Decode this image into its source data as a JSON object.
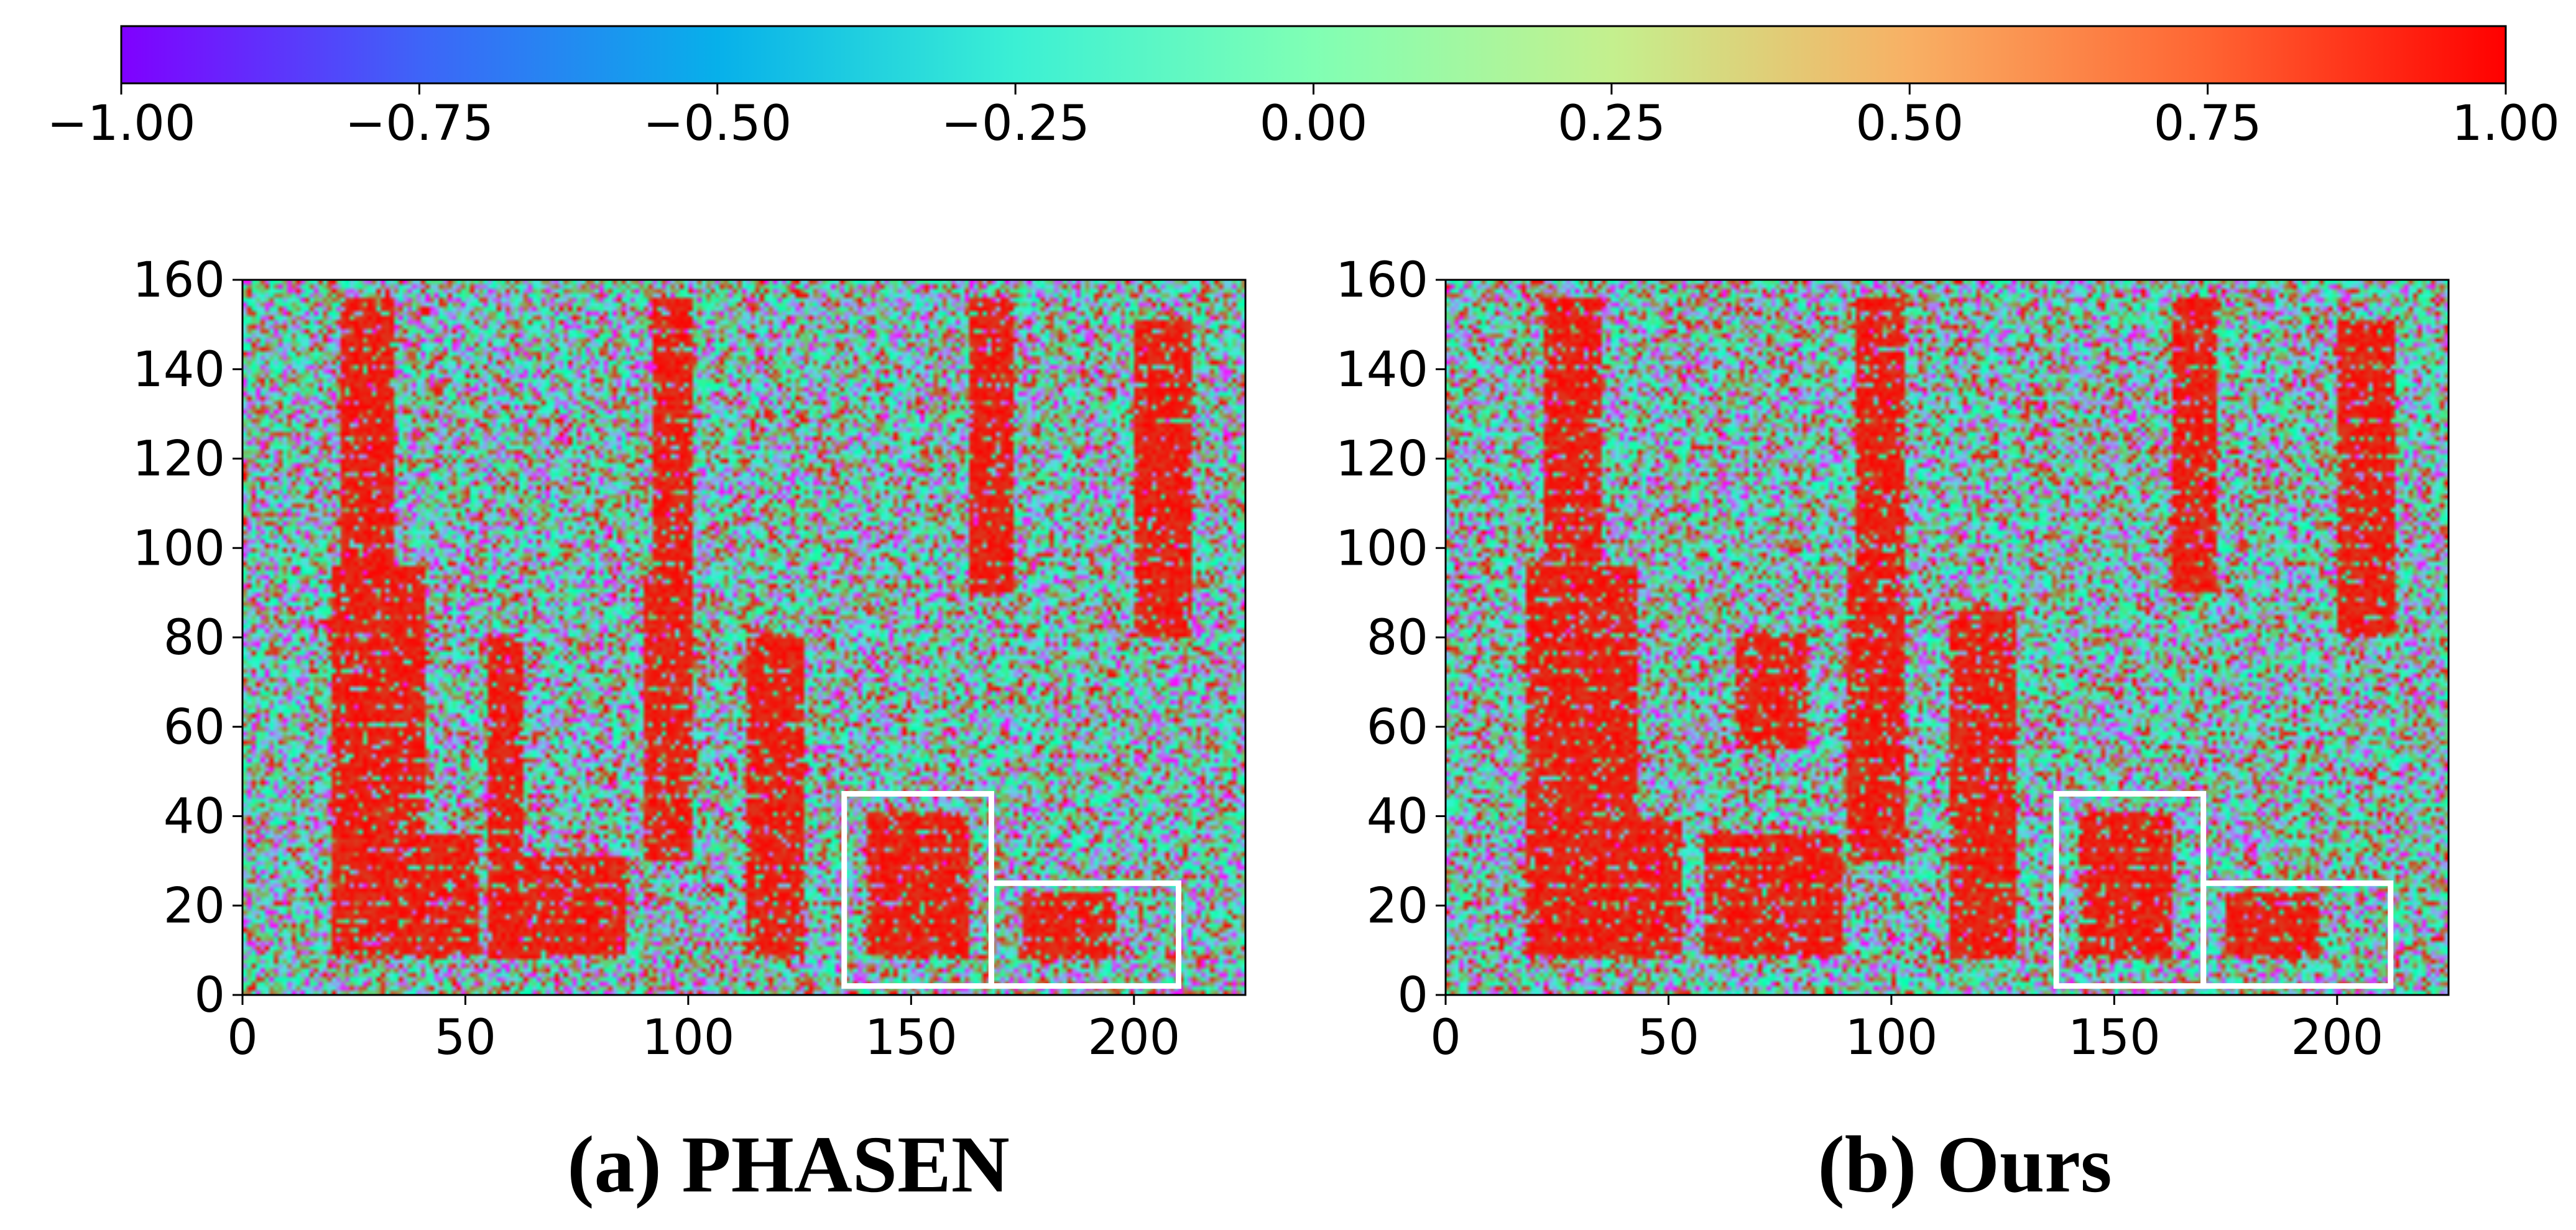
{
  "colorbar": {
    "ticks": [
      "−1.00",
      "−0.75",
      "−0.50",
      "−0.25",
      "0.00",
      "0.25",
      "0.50",
      "0.75",
      "1.00"
    ],
    "vmin": -1.0,
    "vmax": 1.0,
    "colormap": "rainbow",
    "colors": [
      "#8000ff",
      "#3e64f8",
      "#07b0ea",
      "#3bf0d4",
      "#80ffb4",
      "#c4f08e",
      "#f8b064",
      "#ff6432",
      "#ff0000"
    ]
  },
  "chart_data": [
    {
      "type": "heatmap",
      "title": "(a) PHASEN",
      "xlim": [
        0,
        225
      ],
      "ylim": [
        0,
        160
      ],
      "xticks": [
        "0",
        "50",
        "100",
        "150",
        "200"
      ],
      "yticks": [
        "0",
        "20",
        "40",
        "60",
        "80",
        "100",
        "120",
        "140",
        "160"
      ],
      "value_range": [
        -1.0,
        1.0
      ],
      "speech_regions": [
        {
          "x": [
            22,
            33
          ],
          "y": [
            90,
            155
          ]
        },
        {
          "x": [
            20,
            40
          ],
          "y": [
            8,
            95
          ]
        },
        {
          "x": [
            33,
            52
          ],
          "y": [
            8,
            35
          ]
        },
        {
          "x": [
            62,
            85
          ],
          "y": [
            8,
            30
          ]
        },
        {
          "x": [
            55,
            62
          ],
          "y": [
            8,
            80
          ]
        },
        {
          "x": [
            92,
            100
          ],
          "y": [
            90,
            155
          ]
        },
        {
          "x": [
            90,
            100
          ],
          "y": [
            30,
            95
          ]
        },
        {
          "x": [
            113,
            125
          ],
          "y": [
            8,
            80
          ]
        },
        {
          "x": [
            140,
            162
          ],
          "y": [
            8,
            40
          ]
        },
        {
          "x": [
            163,
            172
          ],
          "y": [
            90,
            155
          ]
        },
        {
          "x": [
            200,
            212
          ],
          "y": [
            80,
            150
          ]
        },
        {
          "x": [
            175,
            195
          ],
          "y": [
            8,
            22
          ]
        }
      ],
      "highlight_boxes": [
        {
          "x": [
            135,
            168
          ],
          "y": [
            2,
            45
          ]
        },
        {
          "x": [
            168,
            210
          ],
          "y": [
            2,
            25
          ]
        }
      ]
    },
    {
      "type": "heatmap",
      "title": "(b) Ours",
      "xlim": [
        0,
        225
      ],
      "ylim": [
        0,
        160
      ],
      "xticks": [
        "0",
        "50",
        "100",
        "150",
        "200"
      ],
      "yticks": [
        "0",
        "20",
        "40",
        "60",
        "80",
        "100",
        "120",
        "140",
        "160"
      ],
      "value_range": [
        -1.0,
        1.0
      ],
      "speech_regions": [
        {
          "x": [
            22,
            34
          ],
          "y": [
            90,
            155
          ]
        },
        {
          "x": [
            18,
            42
          ],
          "y": [
            8,
            95
          ]
        },
        {
          "x": [
            33,
            52
          ],
          "y": [
            8,
            38
          ]
        },
        {
          "x": [
            58,
            88
          ],
          "y": [
            8,
            35
          ]
        },
        {
          "x": [
            65,
            80
          ],
          "y": [
            55,
            80
          ]
        },
        {
          "x": [
            92,
            102
          ],
          "y": [
            90,
            155
          ]
        },
        {
          "x": [
            90,
            102
          ],
          "y": [
            30,
            95
          ]
        },
        {
          "x": [
            113,
            127
          ],
          "y": [
            8,
            85
          ]
        },
        {
          "x": [
            142,
            162
          ],
          "y": [
            8,
            40
          ]
        },
        {
          "x": [
            163,
            172
          ],
          "y": [
            90,
            155
          ]
        },
        {
          "x": [
            200,
            212
          ],
          "y": [
            80,
            150
          ]
        },
        {
          "x": [
            175,
            195
          ],
          "y": [
            8,
            22
          ]
        }
      ],
      "highlight_boxes": [
        {
          "x": [
            137,
            170
          ],
          "y": [
            2,
            45
          ]
        },
        {
          "x": [
            170,
            212
          ],
          "y": [
            2,
            25
          ]
        }
      ]
    }
  ]
}
